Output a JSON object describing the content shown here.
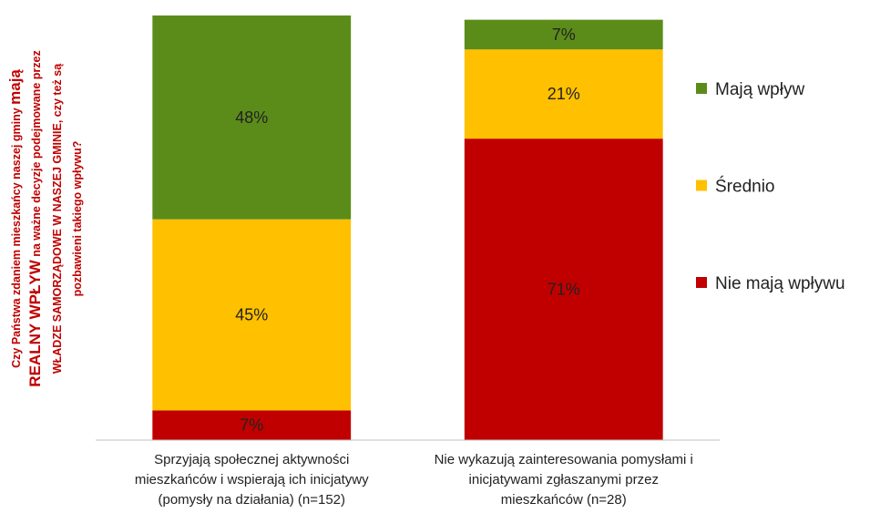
{
  "chart_data": {
    "type": "stacked_bar",
    "ylabel_lines": [
      [
        {
          "text": "Czy Państwa zdaniem mieszkańcy naszej gminy ",
          "big": false
        },
        {
          "text": "mają",
          "big": true
        }
      ],
      [
        {
          "text": "REALNY WPŁYW",
          "big": true
        },
        {
          "text": " na ważne decyzje podejmowane przez",
          "big": false
        }
      ],
      [
        {
          "text": "WŁADZE SAMORZĄDOWE W NASZEJ GMINIE, czy też są",
          "big": false
        }
      ],
      [
        {
          "text": "pozbawieni takiego wpływu?",
          "big": false
        }
      ]
    ],
    "ylabel_color": "#c00000",
    "categories": [
      "Sprzyjają społecznej aktywności\nmieszkańców i wspierają ich inicjatywy\n(pomysły na działania) (n=152)",
      "Nie wykazują zainteresowania pomysłami i\ninicjatywami zgłaszanymi przez\nmieszkańców (n=28)"
    ],
    "series": [
      {
        "name": "Nie mają wpływu",
        "color": "#c00000",
        "values": [
          7,
          71
        ],
        "value_labels": [
          "7%",
          "71%"
        ]
      },
      {
        "name": "Średnio",
        "color": "#ffc000",
        "values": [
          45,
          21
        ],
        "value_labels": [
          "45%",
          "21%"
        ]
      },
      {
        "name": "Mają wpływ",
        "color": "#5b8c1a",
        "values": [
          48,
          7
        ],
        "value_labels": [
          "48%",
          "7%"
        ]
      }
    ],
    "ylim": [
      0,
      100
    ]
  }
}
